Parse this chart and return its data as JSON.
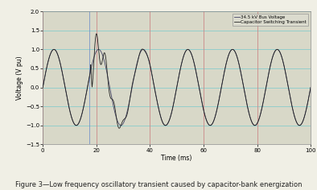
{
  "title": "",
  "xlabel": "Time (ms)",
  "ylabel": "Voltage (V pu)",
  "xlim": [
    0,
    100
  ],
  "ylim": [
    -1.5,
    2.0
  ],
  "yticks": [
    -1.5,
    -1.0,
    -0.5,
    0.0,
    0.5,
    1.0,
    1.5,
    2.0
  ],
  "xticks": [
    0,
    20,
    40,
    60,
    80,
    100
  ],
  "legend_lines": [
    "34.5 kV Bus Voltage",
    "Capacitor Switching Transient"
  ],
  "bg_color": "#e8e8d8",
  "plot_bg": "#d8d8c8",
  "grid_color_h": "#88cccc",
  "grid_color_v": "#cc8888",
  "caption": "Figure 3—Low frequency oscillatory transient caused by capacitor-bank energization",
  "switch_time": 17.5,
  "base_freq_ms": 0.06,
  "osc_freq_ms": 0.01,
  "transient_spike_t": 17.8,
  "transient_spike_amp": 1.65,
  "transient_neg_spike_t": 19.5,
  "transient_neg_amp": -1.25,
  "line_color": "#333333",
  "line_color2": "#555555"
}
